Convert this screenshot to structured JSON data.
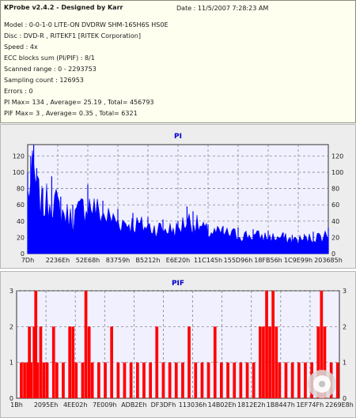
{
  "info": {
    "title": "KProbe v2.4.2 - Designed by Karr",
    "date": "Date : 11/5/2007 7:28:23 AM",
    "lines": [
      "Model : 0-0-1-0 LITE-ON DVDRW SHM-165H6S HS0E",
      "Disc : DVD-R , RITEKF1 [RITEK Corporation]",
      "Speed : 4x",
      "ECC blocks sum (PI/PIF) : 8/1",
      "Scanned range : 0 - 2293753",
      "Sampling count : 126953",
      "Errors : 0",
      "PI Max= 134 , Average= 25.19 , Total= 456793",
      "PIF Max= 3 , Average= 0.35 , Total= 6321"
    ]
  },
  "colors": {
    "pi_fill": "#0000ff",
    "pif_fill": "#ff0000",
    "plot_bg": "#f0f0ff",
    "grid": "#777777",
    "title": "#0000cc"
  },
  "chart_data": [
    {
      "type": "area",
      "title": "PI",
      "xlabel": "",
      "ylabel": "",
      "ylim": [
        0,
        134
      ],
      "yticks": [
        0,
        20,
        40,
        60,
        80,
        100,
        120
      ],
      "xtick_labels": [
        "7Dh",
        "2236Eh",
        "52E68h",
        "83759h",
        "B5212h",
        "E6E20h",
        "11C145h",
        "155D96h",
        "18FB56h",
        "1C9E99h",
        "203685h"
      ],
      "grid": true,
      "max": 134,
      "average": 25.19,
      "envelope": [
        {
          "x": 0,
          "y": 100
        },
        {
          "x": 1,
          "y": 120
        },
        {
          "x": 2,
          "y": 134
        },
        {
          "x": 3,
          "y": 105
        },
        {
          "x": 5,
          "y": 80
        },
        {
          "x": 8,
          "y": 95
        },
        {
          "x": 11,
          "y": 70
        },
        {
          "x": 15,
          "y": 60
        },
        {
          "x": 20,
          "y": 85
        },
        {
          "x": 25,
          "y": 65
        },
        {
          "x": 30,
          "y": 55
        },
        {
          "x": 35,
          "y": 50
        },
        {
          "x": 40,
          "y": 45
        },
        {
          "x": 45,
          "y": 42
        },
        {
          "x": 50,
          "y": 40
        },
        {
          "x": 53,
          "y": 58
        },
        {
          "x": 55,
          "y": 52
        },
        {
          "x": 60,
          "y": 36
        },
        {
          "x": 65,
          "y": 34
        },
        {
          "x": 70,
          "y": 32
        },
        {
          "x": 75,
          "y": 30
        },
        {
          "x": 80,
          "y": 28
        },
        {
          "x": 85,
          "y": 26
        },
        {
          "x": 88,
          "y": 23
        },
        {
          "x": 92,
          "y": 24
        },
        {
          "x": 95,
          "y": 27
        },
        {
          "x": 100,
          "y": 32
        }
      ]
    },
    {
      "type": "bar",
      "title": "PIF",
      "xlabel": "",
      "ylabel": "",
      "ylim": [
        0,
        3
      ],
      "yticks": [
        0,
        1,
        2,
        3
      ],
      "xtick_labels": [
        "1Bh",
        "2095Eh",
        "4EE02h",
        "7E009h",
        "ADB2Eh",
        "DF3DFh",
        "113036h",
        "14B02Eh",
        "1812E2h",
        "1B8447h",
        "1EF74Fh",
        "2269E8h"
      ],
      "grid": true,
      "max": 3,
      "average": 0.35,
      "events": [
        {
          "x": 1,
          "y": 1
        },
        {
          "x": 2,
          "y": 1
        },
        {
          "x": 3,
          "y": 1
        },
        {
          "x": 3.5,
          "y": 2
        },
        {
          "x": 4,
          "y": 1
        },
        {
          "x": 5,
          "y": 2
        },
        {
          "x": 5.5,
          "y": 3
        },
        {
          "x": 6,
          "y": 1
        },
        {
          "x": 7,
          "y": 2
        },
        {
          "x": 8,
          "y": 1
        },
        {
          "x": 9,
          "y": 1
        },
        {
          "x": 11,
          "y": 2
        },
        {
          "x": 12,
          "y": 1
        },
        {
          "x": 14,
          "y": 1
        },
        {
          "x": 16,
          "y": 2
        },
        {
          "x": 17,
          "y": 2
        },
        {
          "x": 18,
          "y": 1
        },
        {
          "x": 20,
          "y": 1
        },
        {
          "x": 21,
          "y": 3
        },
        {
          "x": 22,
          "y": 2
        },
        {
          "x": 23,
          "y": 1
        },
        {
          "x": 25,
          "y": 1
        },
        {
          "x": 27,
          "y": 1
        },
        {
          "x": 29,
          "y": 2
        },
        {
          "x": 31,
          "y": 1
        },
        {
          "x": 33,
          "y": 1
        },
        {
          "x": 35,
          "y": 1
        },
        {
          "x": 37,
          "y": 1
        },
        {
          "x": 39,
          "y": 1
        },
        {
          "x": 41,
          "y": 1
        },
        {
          "x": 43,
          "y": 2
        },
        {
          "x": 45,
          "y": 1
        },
        {
          "x": 47,
          "y": 1
        },
        {
          "x": 49,
          "y": 1
        },
        {
          "x": 51,
          "y": 1
        },
        {
          "x": 53,
          "y": 2
        },
        {
          "x": 55,
          "y": 1
        },
        {
          "x": 57,
          "y": 1
        },
        {
          "x": 59,
          "y": 1
        },
        {
          "x": 61,
          "y": 2
        },
        {
          "x": 63,
          "y": 1
        },
        {
          "x": 65,
          "y": 1
        },
        {
          "x": 67,
          "y": 1
        },
        {
          "x": 69,
          "y": 1
        },
        {
          "x": 71,
          "y": 1
        },
        {
          "x": 73,
          "y": 1
        },
        {
          "x": 75,
          "y": 2
        },
        {
          "x": 76,
          "y": 2
        },
        {
          "x": 77,
          "y": 3
        },
        {
          "x": 78,
          "y": 2
        },
        {
          "x": 79,
          "y": 3
        },
        {
          "x": 80,
          "y": 2
        },
        {
          "x": 81,
          "y": 1
        },
        {
          "x": 83,
          "y": 1
        },
        {
          "x": 85,
          "y": 1
        },
        {
          "x": 87,
          "y": 1
        },
        {
          "x": 89,
          "y": 1
        },
        {
          "x": 91,
          "y": 1
        },
        {
          "x": 93,
          "y": 2
        },
        {
          "x": 94,
          "y": 3
        },
        {
          "x": 95,
          "y": 2
        },
        {
          "x": 97,
          "y": 1
        },
        {
          "x": 99,
          "y": 1
        }
      ]
    }
  ]
}
